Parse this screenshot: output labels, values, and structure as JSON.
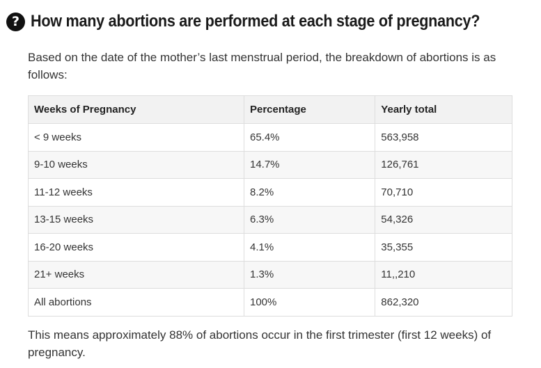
{
  "faq": {
    "question_icon": "question-mark-circle-icon",
    "question_icon_glyph": "?",
    "question": "How many abortions are performed at each stage of pregnancy?",
    "intro": "Based on the date of the mother’s last menstrual period, the breakdown of abortions is as follows:",
    "table": {
      "headers": [
        "Weeks of Pregnancy",
        "Percentage",
        "Yearly total"
      ],
      "rows": [
        [
          "< 9 weeks",
          "65.4%",
          "563,958"
        ],
        [
          "9-10 weeks",
          "14.7%",
          "126,761"
        ],
        [
          "11-12 weeks",
          "8.2%",
          "70,710"
        ],
        [
          "13-15 weeks",
          "6.3%",
          "54,326"
        ],
        [
          "16-20 weeks",
          "4.1%",
          "35,355"
        ],
        [
          "21+ weeks",
          "1.3%",
          "11,,210"
        ],
        [
          "All abortions",
          "100%",
          "862,320"
        ]
      ]
    },
    "summary": "This means approximately 88% of abortions occur in the first trimester (first 12 weeks) of pregnancy."
  }
}
